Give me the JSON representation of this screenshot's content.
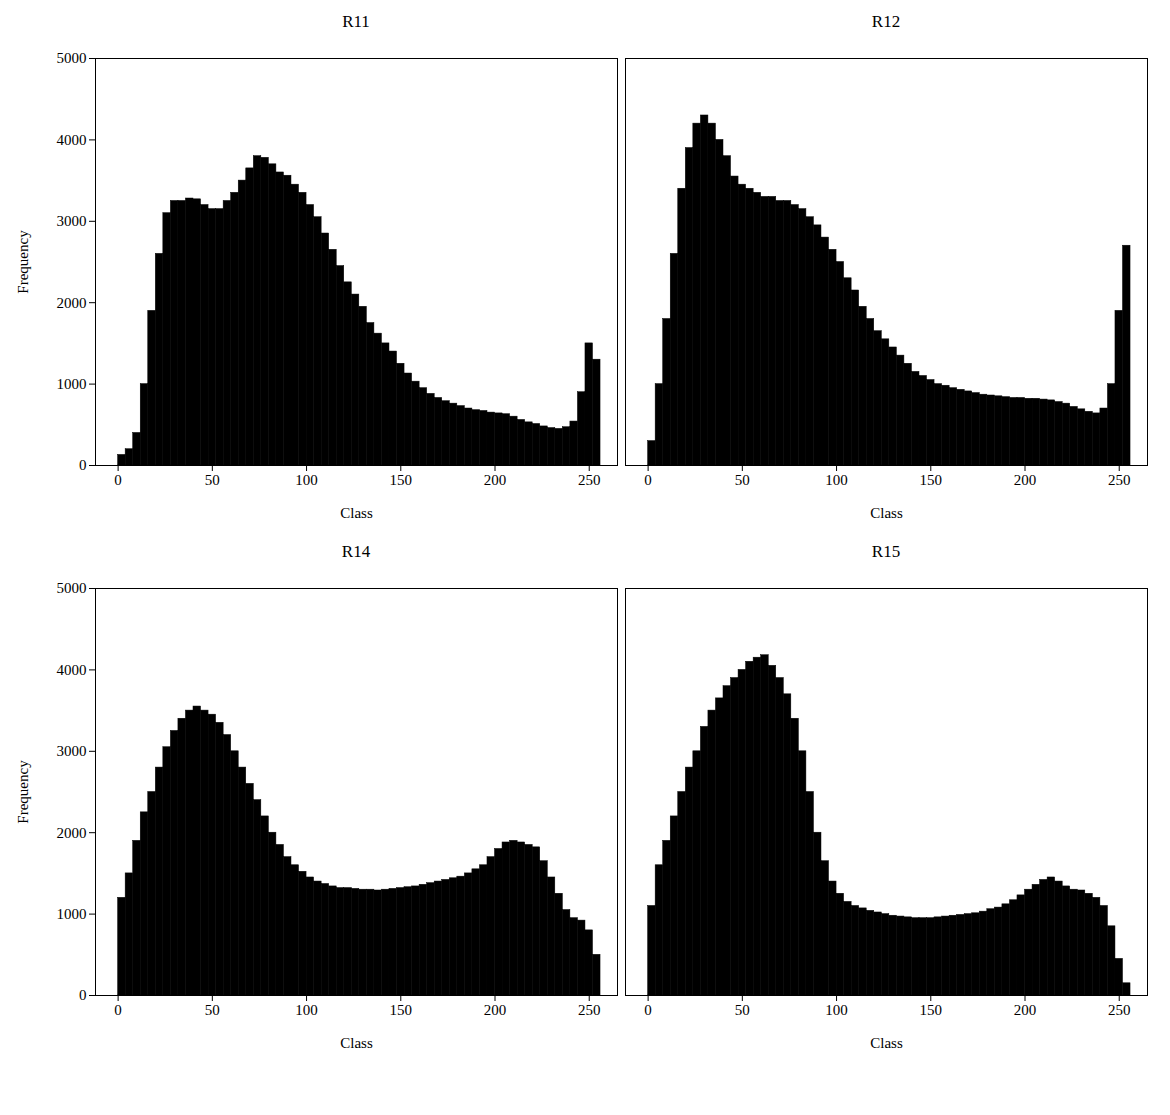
{
  "chart_data": [
    {
      "type": "histogram",
      "title": "R11",
      "xlabel": "Class",
      "ylabel": "Frequency",
      "color": "#000000",
      "bins": [
        0,
        4,
        8,
        12,
        16,
        20,
        24,
        28,
        32,
        36,
        40,
        44,
        48,
        52,
        56,
        60,
        64,
        68,
        72,
        76,
        80,
        84,
        88,
        92,
        96,
        100,
        104,
        108,
        112,
        116,
        120,
        124,
        128,
        132,
        136,
        140,
        144,
        148,
        152,
        156,
        160,
        164,
        168,
        172,
        176,
        180,
        184,
        188,
        192,
        196,
        200,
        204,
        208,
        212,
        216,
        220,
        224,
        228,
        232,
        236,
        240,
        244,
        248,
        252,
        256
      ],
      "counts": [
        130,
        200,
        400,
        1000,
        1900,
        2600,
        3100,
        3250,
        3250,
        3280,
        3270,
        3200,
        3150,
        3150,
        3250,
        3350,
        3500,
        3650,
        3800,
        3780,
        3700,
        3600,
        3560,
        3450,
        3350,
        3200,
        3050,
        2850,
        2650,
        2450,
        2250,
        2100,
        1950,
        1750,
        1620,
        1500,
        1400,
        1250,
        1130,
        1030,
        950,
        880,
        830,
        790,
        760,
        730,
        700,
        680,
        670,
        650,
        640,
        630,
        600,
        560,
        530,
        510,
        480,
        460,
        450,
        470,
        540,
        900,
        1500,
        1300
      ],
      "xlim": [
        -12,
        265
      ],
      "ylim": [
        0,
        5000
      ],
      "xticks": [
        0,
        50,
        100,
        150,
        200,
        250
      ],
      "yticks": [
        0,
        1000,
        2000,
        3000,
        4000,
        5000
      ]
    },
    {
      "type": "histogram",
      "title": "R12",
      "xlabel": "Class",
      "color": "#000000",
      "tick_labels": "x",
      "bins": [
        0,
        4,
        8,
        12,
        16,
        20,
        24,
        28,
        32,
        36,
        40,
        44,
        48,
        52,
        56,
        60,
        64,
        68,
        72,
        76,
        80,
        84,
        88,
        92,
        96,
        100,
        104,
        108,
        112,
        116,
        120,
        124,
        128,
        132,
        136,
        140,
        144,
        148,
        152,
        156,
        160,
        164,
        168,
        172,
        176,
        180,
        184,
        188,
        192,
        196,
        200,
        204,
        208,
        212,
        216,
        220,
        224,
        228,
        232,
        236,
        240,
        244,
        248,
        252,
        256
      ],
      "counts": [
        300,
        1000,
        1800,
        2600,
        3400,
        3900,
        4200,
        4300,
        4200,
        4000,
        3800,
        3550,
        3450,
        3400,
        3350,
        3300,
        3300,
        3250,
        3250,
        3200,
        3150,
        3050,
        2950,
        2800,
        2650,
        2500,
        2300,
        2150,
        1950,
        1800,
        1650,
        1550,
        1450,
        1350,
        1250,
        1150,
        1100,
        1050,
        1000,
        980,
        950,
        930,
        910,
        890,
        870,
        860,
        850,
        840,
        830,
        830,
        820,
        820,
        810,
        800,
        780,
        760,
        720,
        690,
        660,
        640,
        700,
        1000,
        1900,
        2700
      ],
      "xlim": [
        -12,
        265
      ],
      "ylim": [
        0,
        5000
      ],
      "xticks": [
        0,
        50,
        100,
        150,
        200,
        250
      ],
      "yticks": [
        0,
        1000,
        2000,
        3000,
        4000,
        5000
      ]
    },
    {
      "type": "histogram",
      "title": "R14",
      "xlabel": "Class",
      "ylabel": "Frequency",
      "color": "#000000",
      "bins": [
        0,
        4,
        8,
        12,
        16,
        20,
        24,
        28,
        32,
        36,
        40,
        44,
        48,
        52,
        56,
        60,
        64,
        68,
        72,
        76,
        80,
        84,
        88,
        92,
        96,
        100,
        104,
        108,
        112,
        116,
        120,
        124,
        128,
        132,
        136,
        140,
        144,
        148,
        152,
        156,
        160,
        164,
        168,
        172,
        176,
        180,
        184,
        188,
        192,
        196,
        200,
        204,
        208,
        212,
        216,
        220,
        224,
        228,
        232,
        236,
        240,
        244,
        248,
        252,
        256
      ],
      "counts": [
        1200,
        1500,
        1900,
        2250,
        2500,
        2800,
        3050,
        3250,
        3400,
        3500,
        3550,
        3500,
        3450,
        3350,
        3200,
        3000,
        2800,
        2600,
        2400,
        2200,
        2000,
        1850,
        1700,
        1600,
        1520,
        1450,
        1400,
        1370,
        1340,
        1320,
        1320,
        1310,
        1300,
        1300,
        1290,
        1300,
        1310,
        1320,
        1330,
        1340,
        1360,
        1380,
        1400,
        1420,
        1440,
        1460,
        1500,
        1550,
        1600,
        1700,
        1800,
        1880,
        1900,
        1880,
        1850,
        1820,
        1650,
        1450,
        1250,
        1050,
        950,
        920,
        800,
        500
      ],
      "xlim": [
        -12,
        265
      ],
      "ylim": [
        0,
        5000
      ],
      "xticks": [
        0,
        50,
        100,
        150,
        200,
        250
      ],
      "yticks": [
        0,
        1000,
        2000,
        3000,
        4000,
        5000
      ]
    },
    {
      "type": "histogram",
      "title": "R15",
      "xlabel": "Class",
      "color": "#000000",
      "tick_labels": "x",
      "bins": [
        0,
        4,
        8,
        12,
        16,
        20,
        24,
        28,
        32,
        36,
        40,
        44,
        48,
        52,
        56,
        60,
        64,
        68,
        72,
        76,
        80,
        84,
        88,
        92,
        96,
        100,
        104,
        108,
        112,
        116,
        120,
        124,
        128,
        132,
        136,
        140,
        144,
        148,
        152,
        156,
        160,
        164,
        168,
        172,
        176,
        180,
        184,
        188,
        192,
        196,
        200,
        204,
        208,
        212,
        216,
        220,
        224,
        228,
        232,
        236,
        240,
        244,
        248,
        252,
        256
      ],
      "counts": [
        1100,
        1600,
        1900,
        2200,
        2500,
        2800,
        3000,
        3300,
        3500,
        3650,
        3800,
        3900,
        4000,
        4100,
        4150,
        4180,
        4050,
        3900,
        3700,
        3400,
        3000,
        2500,
        2000,
        1650,
        1400,
        1250,
        1150,
        1100,
        1070,
        1040,
        1020,
        1000,
        980,
        970,
        960,
        950,
        950,
        950,
        960,
        970,
        980,
        990,
        1000,
        1010,
        1030,
        1060,
        1080,
        1120,
        1170,
        1230,
        1300,
        1360,
        1420,
        1450,
        1400,
        1340,
        1300,
        1290,
        1250,
        1200,
        1100,
        850,
        450,
        150
      ],
      "xlim": [
        -12,
        265
      ],
      "ylim": [
        0,
        5000
      ],
      "xticks": [
        0,
        50,
        100,
        150,
        200,
        250
      ],
      "yticks": [
        0,
        1000,
        2000,
        3000,
        4000,
        5000
      ]
    }
  ]
}
